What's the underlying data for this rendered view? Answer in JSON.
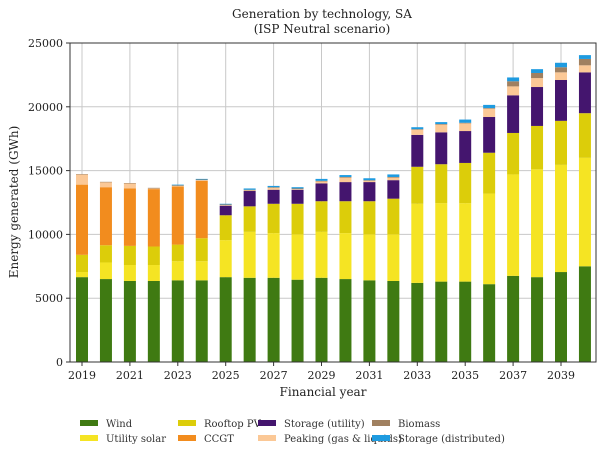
{
  "chart_data": {
    "type": "bar",
    "stacked": true,
    "title": "Generation by technology, SA",
    "subtitle": "(ISP Neutral scenario)",
    "xlabel": "Financial year",
    "ylabel": "Energy generated (GWh)",
    "ylim": [
      0,
      25000
    ],
    "yticks": [
      0,
      5000,
      10000,
      15000,
      20000,
      25000
    ],
    "xtick_labels": [
      "2019",
      "2021",
      "2023",
      "2025",
      "2027",
      "2029",
      "2031",
      "2033",
      "2035",
      "2037",
      "2039"
    ],
    "grid": true,
    "legend_position": "bottom",
    "categories": [
      "2019",
      "2020",
      "2021",
      "2022",
      "2023",
      "2024",
      "2025",
      "2026",
      "2027",
      "2028",
      "2029",
      "2030",
      "2031",
      "2032",
      "2033",
      "2034",
      "2035",
      "2036",
      "2037",
      "2038",
      "2039",
      "2040"
    ],
    "series": [
      {
        "name": "Wind",
        "color": "#3f7a12",
        "values": [
          6650,
          6500,
          6350,
          6350,
          6400,
          6400,
          6650,
          6600,
          6600,
          6450,
          6600,
          6500,
          6400,
          6350,
          6200,
          6300,
          6300,
          6100,
          6750,
          6650,
          7050,
          7500
        ]
      },
      {
        "name": "Utility solar",
        "color": "#f5e423",
        "values": [
          400,
          1300,
          1250,
          1250,
          1500,
          1500,
          2900,
          3600,
          3500,
          3550,
          3600,
          3600,
          3600,
          3650,
          6200,
          6150,
          6150,
          7100,
          7950,
          8450,
          8400,
          8500
        ]
      },
      {
        "name": "Rooftop PV",
        "color": "#dccd0a",
        "values": [
          1350,
          1350,
          1500,
          1450,
          1300,
          1800,
          1950,
          2000,
          2300,
          2400,
          2400,
          2500,
          2600,
          2800,
          2900,
          3050,
          3150,
          3200,
          3250,
          3400,
          3450,
          3500
        ]
      },
      {
        "name": "CCGT",
        "color": "#f28c1e",
        "values": [
          5500,
          4550,
          4500,
          4500,
          4550,
          4500,
          0,
          0,
          0,
          0,
          0,
          0,
          0,
          0,
          0,
          0,
          0,
          0,
          0,
          0,
          0,
          0
        ]
      },
      {
        "name": "Storage (utility)",
        "color": "#44156e",
        "values": [
          0,
          0,
          0,
          0,
          0,
          0,
          750,
          1200,
          1100,
          1100,
          1400,
          1500,
          1500,
          1450,
          2500,
          2500,
          2500,
          2800,
          2950,
          3050,
          3200,
          3200
        ]
      },
      {
        "name": "Peaking (gas & liquids)",
        "color": "#fbc896",
        "values": [
          800,
          400,
          400,
          50,
          50,
          50,
          50,
          50,
          150,
          50,
          150,
          350,
          100,
          200,
          400,
          600,
          600,
          650,
          700,
          700,
          600,
          550
        ]
      },
      {
        "name": "Biomass",
        "color": "#a08060",
        "values": [
          20,
          20,
          20,
          50,
          50,
          50,
          50,
          50,
          50,
          50,
          50,
          50,
          50,
          50,
          50,
          50,
          50,
          50,
          400,
          400,
          400,
          500
        ]
      },
      {
        "name": "Storage (distributed)",
        "color": "#1e9be0",
        "values": [
          0,
          0,
          0,
          0,
          50,
          50,
          50,
          100,
          100,
          100,
          150,
          150,
          150,
          200,
          150,
          150,
          250,
          250,
          300,
          300,
          350,
          300
        ]
      }
    ],
    "legend_order": [
      [
        "Wind",
        "Utility solar"
      ],
      [
        "Rooftop PV",
        "CCGT"
      ],
      [
        "Storage (utility)",
        "Peaking (gas & liquids)"
      ],
      [
        "Biomass",
        "Storage (distributed)"
      ]
    ]
  }
}
